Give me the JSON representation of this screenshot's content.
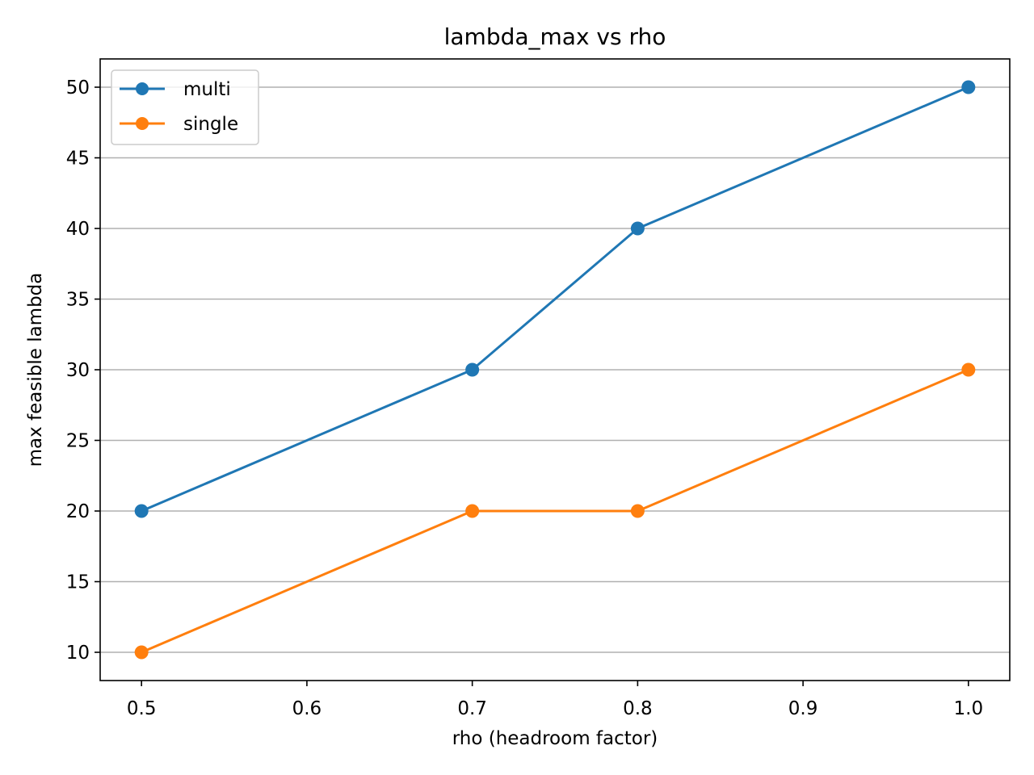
{
  "chart_data": {
    "type": "line",
    "title": "lambda_max vs rho",
    "xlabel": "rho (headroom factor)",
    "ylabel": "max feasible lambda",
    "x": [
      0.5,
      0.7,
      0.8,
      1.0
    ],
    "series": [
      {
        "name": "multi",
        "values": [
          20,
          30,
          40,
          50
        ],
        "color": "#1f77b4"
      },
      {
        "name": "single",
        "values": [
          10,
          20,
          20,
          30
        ],
        "color": "#ff7f0e"
      }
    ],
    "xlim": [
      0.475,
      1.025
    ],
    "ylim": [
      8,
      52
    ],
    "xticks": [
      0.5,
      0.6,
      0.7,
      0.8,
      0.9,
      1.0
    ],
    "xtick_labels": [
      "0.5",
      "0.6",
      "0.7",
      "0.8",
      "0.9",
      "1.0"
    ],
    "yticks": [
      10,
      15,
      20,
      25,
      30,
      35,
      40,
      45,
      50
    ],
    "ytick_labels": [
      "10",
      "15",
      "20",
      "25",
      "30",
      "35",
      "40",
      "45",
      "50"
    ],
    "grid": "y-axis horizontal lines",
    "legend_position": "upper-left",
    "grid_color": "#b0b0b0",
    "axis_color": "#000000"
  }
}
